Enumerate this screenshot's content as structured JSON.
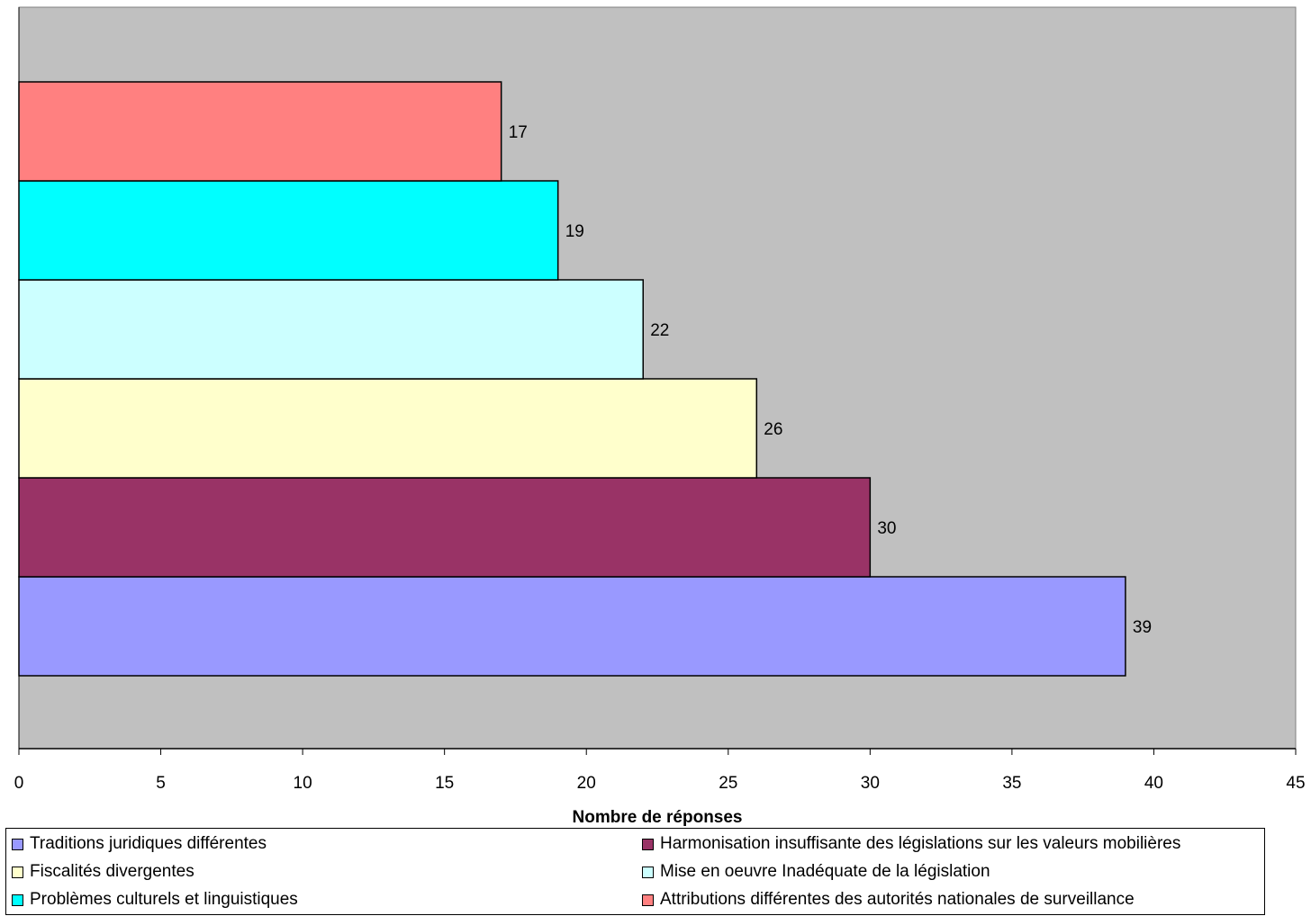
{
  "chart_data": {
    "type": "bar",
    "orientation": "horizontal",
    "title": "",
    "xlabel": "Nombre de réponses",
    "ylabel": "",
    "xlim": [
      0,
      45
    ],
    "x_ticks": [
      0,
      5,
      10,
      15,
      20,
      25,
      30,
      35,
      40,
      45
    ],
    "grid": false,
    "plot_background": "#c0c0c0",
    "legend_position": "bottom",
    "categories": [
      "Traditions juridiques différentes",
      "Harmonisation insuffisante des législations sur les valeurs mobilières",
      "Fiscalités divergentes",
      "Mise en oeuvre Inadéquate de la législation",
      "Problèmes culturels et linguistiques",
      "Attributions différentes des autorités nationales de surveillance"
    ],
    "values": [
      39,
      30,
      26,
      22,
      19,
      17
    ],
    "colors": [
      "#9999ff",
      "#993366",
      "#ffffcc",
      "#ccffff",
      "#00ffff",
      "#ff8080"
    ],
    "data_labels": [
      "39",
      "30",
      "26",
      "22",
      "19",
      "17"
    ]
  }
}
